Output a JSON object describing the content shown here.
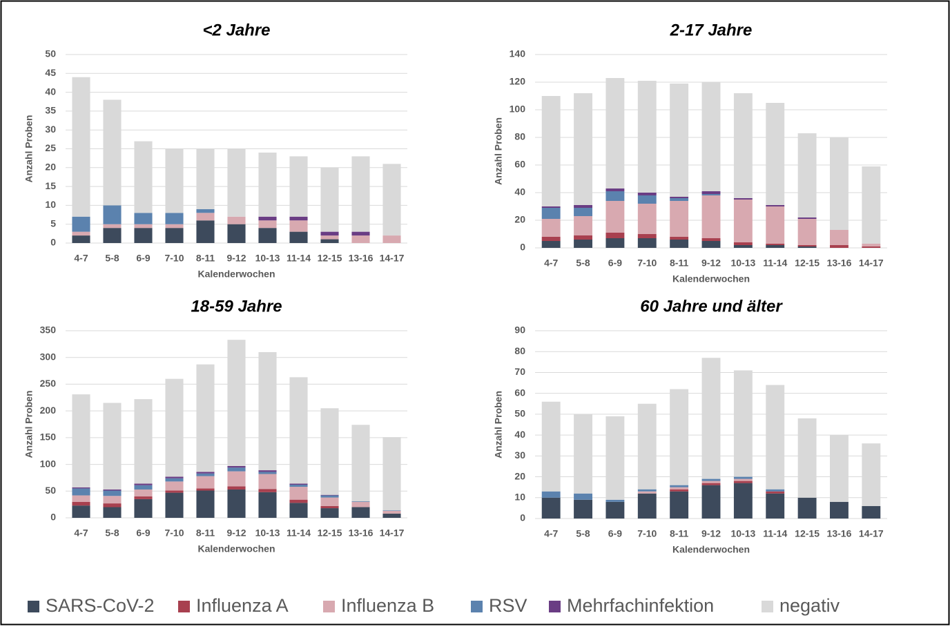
{
  "legend": [
    {
      "name": "SARS-CoV-2",
      "color": "#3d4a5c"
    },
    {
      "name": "Influenza A",
      "color": "#a8404f"
    },
    {
      "name": "Influenza B",
      "color": "#d8a9b0"
    },
    {
      "name": "RSV",
      "color": "#5b82ae"
    },
    {
      "name": "Mehrfachinfektion",
      "color": "#6a3d84"
    },
    {
      "name": "negativ",
      "color": "#d9d9d9"
    }
  ],
  "chart_data": [
    {
      "type": "bar",
      "stacked": true,
      "title": "<2 Jahre",
      "x_label": "Kalenderwochen",
      "y_label": "Anzahl Proben",
      "grid": true,
      "categories": [
        "4-7",
        "5-8",
        "6-9",
        "7-10",
        "8-11",
        "9-12",
        "10-13",
        "11-14",
        "12-15",
        "13-16",
        "14-17"
      ],
      "ylim": [
        0,
        50
      ],
      "yticks": [
        0,
        5,
        10,
        15,
        20,
        25,
        30,
        35,
        40,
        45,
        50
      ],
      "series": [
        {
          "values": [
            2,
            4,
            4,
            4,
            6,
            5,
            4,
            3,
            1,
            0,
            0
          ]
        },
        {
          "values": [
            0,
            0,
            0,
            0,
            0,
            0,
            0,
            0,
            0,
            0,
            0
          ]
        },
        {
          "values": [
            1,
            1,
            1,
            1,
            2,
            2,
            2,
            3,
            1,
            2,
            2
          ]
        },
        {
          "values": [
            4,
            5,
            3,
            3,
            1,
            0,
            0,
            0,
            0,
            0,
            0
          ]
        },
        {
          "values": [
            0,
            0,
            0,
            0,
            0,
            0,
            1,
            1,
            1,
            1,
            0
          ]
        },
        {
          "values": [
            37,
            28,
            19,
            17,
            16,
            18,
            17,
            16,
            17,
            20,
            19
          ]
        }
      ]
    },
    {
      "type": "bar",
      "stacked": true,
      "title": "2-17 Jahre",
      "x_label": "Kalenderwochen",
      "y_label": "Anzahl Proben",
      "grid": true,
      "categories": [
        "4-7",
        "5-8",
        "6-9",
        "7-10",
        "8-11",
        "9-12",
        "10-13",
        "11-14",
        "12-15",
        "13-16",
        "14-17"
      ],
      "ylim": [
        0,
        140
      ],
      "yticks": [
        0,
        20,
        40,
        60,
        80,
        100,
        120,
        140
      ],
      "series": [
        {
          "values": [
            5,
            6,
            7,
            7,
            6,
            5,
            2,
            2,
            1,
            0,
            0
          ]
        },
        {
          "values": [
            3,
            3,
            4,
            3,
            2,
            2,
            2,
            1,
            1,
            2,
            1
          ]
        },
        {
          "values": [
            13,
            14,
            23,
            22,
            26,
            31,
            31,
            27,
            19,
            11,
            2
          ]
        },
        {
          "values": [
            8,
            6,
            7,
            6,
            2,
            1,
            0,
            0,
            0,
            0,
            0
          ]
        },
        {
          "values": [
            1,
            2,
            2,
            2,
            1,
            2,
            1,
            1,
            1,
            0,
            0
          ]
        },
        {
          "values": [
            80,
            81,
            80,
            81,
            82,
            79,
            76,
            74,
            61,
            67,
            56
          ]
        }
      ]
    },
    {
      "type": "bar",
      "stacked": true,
      "title": "18-59 Jahre",
      "x_label": "Kalenderwochen",
      "y_label": "Anzahl Proben",
      "grid": true,
      "categories": [
        "4-7",
        "5-8",
        "6-9",
        "7-10",
        "8-11",
        "9-12",
        "10-13",
        "11-14",
        "12-15",
        "13-16",
        "14-17"
      ],
      "ylim": [
        0,
        350
      ],
      "yticks": [
        0,
        50,
        100,
        150,
        200,
        250,
        300,
        350
      ],
      "series": [
        {
          "values": [
            23,
            20,
            35,
            47,
            51,
            53,
            48,
            28,
            18,
            20,
            8
          ]
        },
        {
          "values": [
            7,
            7,
            5,
            4,
            4,
            6,
            6,
            6,
            4,
            0,
            0
          ]
        },
        {
          "values": [
            12,
            14,
            13,
            17,
            23,
            28,
            28,
            24,
            16,
            10,
            5
          ]
        },
        {
          "values": [
            13,
            10,
            8,
            6,
            5,
            7,
            4,
            4,
            4,
            1,
            1
          ]
        },
        {
          "values": [
            2,
            2,
            3,
            3,
            3,
            3,
            3,
            2,
            1,
            0,
            0
          ]
        },
        {
          "values": [
            174,
            162,
            158,
            183,
            201,
            236,
            221,
            199,
            162,
            143,
            137
          ]
        }
      ]
    },
    {
      "type": "bar",
      "stacked": true,
      "title": "60 Jahre und älter",
      "x_label": "Kalenderwochen",
      "y_label": "Anzahl Proben",
      "grid": true,
      "categories": [
        "4-7",
        "5-8",
        "6-9",
        "7-10",
        "8-11",
        "9-12",
        "10-13",
        "11-14",
        "12-15",
        "13-16",
        "14-17"
      ],
      "ylim": [
        0,
        90
      ],
      "yticks": [
        0,
        10,
        20,
        30,
        40,
        50,
        60,
        70,
        80,
        90
      ],
      "series": [
        {
          "values": [
            10,
            9,
            8,
            12,
            13,
            16,
            17,
            12,
            10,
            8,
            6
          ]
        },
        {
          "values": [
            0,
            0,
            0,
            0,
            1,
            1,
            1,
            1,
            0,
            0,
            0
          ]
        },
        {
          "values": [
            0,
            0,
            0,
            1,
            1,
            1,
            1,
            0,
            0,
            0,
            0
          ]
        },
        {
          "values": [
            3,
            3,
            1,
            1,
            1,
            1,
            1,
            1,
            0,
            0,
            0
          ]
        },
        {
          "values": [
            0,
            0,
            0,
            0,
            0,
            0,
            0,
            0,
            0,
            0,
            0
          ]
        },
        {
          "values": [
            43,
            38,
            40,
            41,
            46,
            58,
            51,
            50,
            38,
            32,
            30
          ]
        }
      ]
    }
  ]
}
